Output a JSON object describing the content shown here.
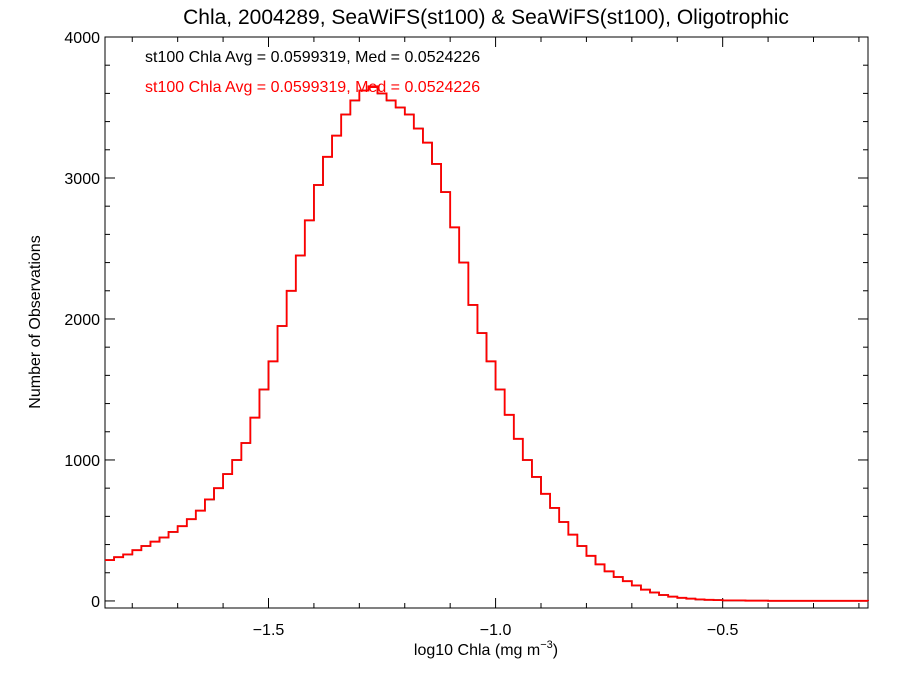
{
  "chart_data": {
    "type": "line",
    "style": "step-histogram",
    "title": "Chla, 2004289, SeaWiFS(st100) & SeaWiFS(st100), Oligotrophic",
    "xlabel_base": "log10 Chla (mg m",
    "xlabel_exp": "−3",
    "xlabel_close": ")",
    "ylabel": "Number of Observations",
    "xlim": [
      -1.86,
      -0.18
    ],
    "ylim": [
      -50,
      4000
    ],
    "x_ticks": [
      -1.5,
      -1.0,
      -0.5
    ],
    "x_tick_labels": [
      "−1.5",
      "−1.0",
      "−0.5"
    ],
    "y_ticks": [
      0,
      1000,
      2000,
      3000,
      4000
    ],
    "y_tick_labels": [
      "0",
      "1000",
      "2000",
      "3000",
      "4000"
    ],
    "annotations": [
      {
        "text": "st100 Chla Avg = 0.0599319, Med = 0.0524226",
        "color": "#000000"
      },
      {
        "text": "st100 Chla Avg = 0.0599319, Med = 0.0524226",
        "color": "#ff0000"
      }
    ],
    "series": [
      {
        "color": "#000000",
        "points": [
          [
            -1.86,
            290
          ],
          [
            -1.84,
            310
          ],
          [
            -1.82,
            330
          ],
          [
            -1.8,
            360
          ],
          [
            -1.78,
            390
          ],
          [
            -1.76,
            420
          ],
          [
            -1.74,
            450
          ],
          [
            -1.72,
            490
          ],
          [
            -1.7,
            530
          ],
          [
            -1.68,
            580
          ],
          [
            -1.66,
            640
          ],
          [
            -1.64,
            720
          ],
          [
            -1.62,
            800
          ],
          [
            -1.6,
            900
          ],
          [
            -1.58,
            1000
          ],
          [
            -1.56,
            1120
          ],
          [
            -1.54,
            1300
          ],
          [
            -1.52,
            1500
          ],
          [
            -1.5,
            1700
          ],
          [
            -1.48,
            1950
          ],
          [
            -1.46,
            2200
          ],
          [
            -1.44,
            2450
          ],
          [
            -1.42,
            2700
          ],
          [
            -1.4,
            2950
          ],
          [
            -1.38,
            3150
          ],
          [
            -1.36,
            3300
          ],
          [
            -1.34,
            3450
          ],
          [
            -1.32,
            3550
          ],
          [
            -1.3,
            3620
          ],
          [
            -1.28,
            3650
          ],
          [
            -1.26,
            3600
          ],
          [
            -1.24,
            3550
          ],
          [
            -1.22,
            3500
          ],
          [
            -1.2,
            3450
          ],
          [
            -1.18,
            3350
          ],
          [
            -1.16,
            3250
          ],
          [
            -1.14,
            3100
          ],
          [
            -1.12,
            2900
          ],
          [
            -1.1,
            2650
          ],
          [
            -1.08,
            2400
          ],
          [
            -1.06,
            2100
          ],
          [
            -1.04,
            1900
          ],
          [
            -1.02,
            1700
          ],
          [
            -1.0,
            1500
          ],
          [
            -0.98,
            1320
          ],
          [
            -0.96,
            1150
          ],
          [
            -0.94,
            1000
          ],
          [
            -0.92,
            880
          ],
          [
            -0.9,
            760
          ],
          [
            -0.88,
            660
          ],
          [
            -0.86,
            560
          ],
          [
            -0.84,
            470
          ],
          [
            -0.82,
            390
          ],
          [
            -0.8,
            320
          ],
          [
            -0.78,
            260
          ],
          [
            -0.76,
            210
          ],
          [
            -0.74,
            170
          ],
          [
            -0.72,
            140
          ],
          [
            -0.7,
            110
          ],
          [
            -0.68,
            80
          ],
          [
            -0.66,
            60
          ],
          [
            -0.64,
            42
          ],
          [
            -0.62,
            30
          ],
          [
            -0.6,
            22
          ],
          [
            -0.58,
            16
          ],
          [
            -0.56,
            11
          ],
          [
            -0.54,
            8
          ],
          [
            -0.52,
            6
          ],
          [
            -0.5,
            4
          ],
          [
            -0.45,
            2
          ],
          [
            -0.4,
            1
          ],
          [
            -0.3,
            1
          ],
          [
            -0.18,
            0
          ]
        ]
      },
      {
        "color": "#ff0000",
        "points": [
          [
            -1.86,
            290
          ],
          [
            -1.84,
            310
          ],
          [
            -1.82,
            330
          ],
          [
            -1.8,
            360
          ],
          [
            -1.78,
            390
          ],
          [
            -1.76,
            420
          ],
          [
            -1.74,
            450
          ],
          [
            -1.72,
            490
          ],
          [
            -1.7,
            530
          ],
          [
            -1.68,
            580
          ],
          [
            -1.66,
            640
          ],
          [
            -1.64,
            720
          ],
          [
            -1.62,
            800
          ],
          [
            -1.6,
            900
          ],
          [
            -1.58,
            1000
          ],
          [
            -1.56,
            1120
          ],
          [
            -1.54,
            1300
          ],
          [
            -1.52,
            1500
          ],
          [
            -1.5,
            1700
          ],
          [
            -1.48,
            1950
          ],
          [
            -1.46,
            2200
          ],
          [
            -1.44,
            2450
          ],
          [
            -1.42,
            2700
          ],
          [
            -1.4,
            2950
          ],
          [
            -1.38,
            3150
          ],
          [
            -1.36,
            3300
          ],
          [
            -1.34,
            3450
          ],
          [
            -1.32,
            3550
          ],
          [
            -1.3,
            3620
          ],
          [
            -1.28,
            3650
          ],
          [
            -1.26,
            3600
          ],
          [
            -1.24,
            3550
          ],
          [
            -1.22,
            3500
          ],
          [
            -1.2,
            3450
          ],
          [
            -1.18,
            3350
          ],
          [
            -1.16,
            3250
          ],
          [
            -1.14,
            3100
          ],
          [
            -1.12,
            2900
          ],
          [
            -1.1,
            2650
          ],
          [
            -1.08,
            2400
          ],
          [
            -1.06,
            2100
          ],
          [
            -1.04,
            1900
          ],
          [
            -1.02,
            1700
          ],
          [
            -1.0,
            1500
          ],
          [
            -0.98,
            1320
          ],
          [
            -0.96,
            1150
          ],
          [
            -0.94,
            1000
          ],
          [
            -0.92,
            880
          ],
          [
            -0.9,
            760
          ],
          [
            -0.88,
            660
          ],
          [
            -0.86,
            560
          ],
          [
            -0.84,
            470
          ],
          [
            -0.82,
            390
          ],
          [
            -0.8,
            320
          ],
          [
            -0.78,
            260
          ],
          [
            -0.76,
            210
          ],
          [
            -0.74,
            170
          ],
          [
            -0.72,
            140
          ],
          [
            -0.7,
            110
          ],
          [
            -0.68,
            80
          ],
          [
            -0.66,
            60
          ],
          [
            -0.64,
            42
          ],
          [
            -0.62,
            30
          ],
          [
            -0.6,
            22
          ],
          [
            -0.58,
            16
          ],
          [
            -0.56,
            11
          ],
          [
            -0.54,
            8
          ],
          [
            -0.52,
            6
          ],
          [
            -0.5,
            4
          ],
          [
            -0.45,
            2
          ],
          [
            -0.4,
            1
          ],
          [
            -0.3,
            1
          ],
          [
            -0.18,
            0
          ]
        ]
      }
    ]
  }
}
